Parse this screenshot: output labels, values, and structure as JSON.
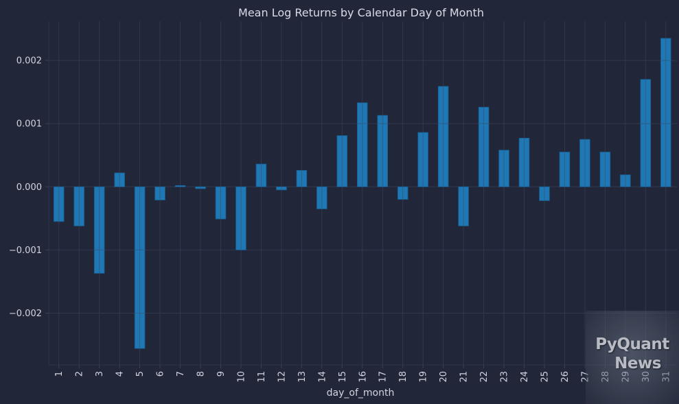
{
  "chart_data": {
    "type": "bar",
    "title": "Mean Log Returns by Calendar Day of Month",
    "xlabel": "day_of_month",
    "ylabel": "",
    "categories": [
      "1",
      "2",
      "3",
      "4",
      "5",
      "6",
      "7",
      "8",
      "9",
      "10",
      "11",
      "12",
      "13",
      "14",
      "15",
      "16",
      "17",
      "18",
      "19",
      "20",
      "21",
      "22",
      "23",
      "24",
      "25",
      "26",
      "27",
      "28",
      "29",
      "30",
      "31"
    ],
    "values": [
      -0.00055,
      -0.00062,
      -0.00137,
      0.00022,
      -0.00256,
      -0.00021,
      2e-05,
      -3e-05,
      -0.00051,
      -0.001,
      0.00036,
      -5e-05,
      0.00026,
      -0.00035,
      0.00081,
      0.00133,
      0.00113,
      -0.0002,
      0.00086,
      0.00159,
      -0.00062,
      0.00126,
      0.00058,
      0.00077,
      -0.00022,
      0.00055,
      0.00075,
      0.00055,
      0.00019,
      0.0017,
      0.00235
    ],
    "ylim": [
      -0.00282,
      0.00262
    ],
    "yticks": [
      -0.002,
      -0.001,
      0.0,
      0.001,
      0.002
    ],
    "ytick_labels": [
      "−0.002",
      "−0.001",
      "0.000",
      "0.001",
      "0.002"
    ],
    "grid": true,
    "bar_color": "#1f77b4",
    "bar_edge_color": "#175d8e",
    "legend": ""
  },
  "watermark": {
    "line1": "PyQuant",
    "line2": "News"
  },
  "colors": {
    "background": "#212639",
    "text": "#d3d6e0",
    "grid": "#323850"
  }
}
